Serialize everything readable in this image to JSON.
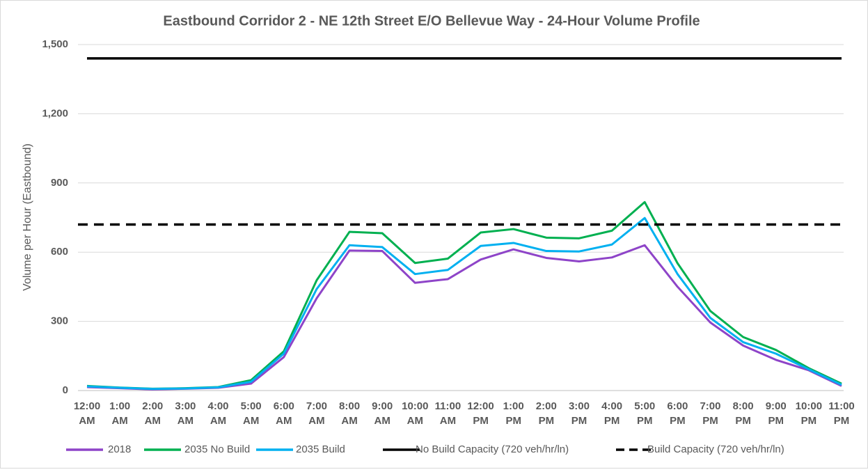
{
  "chart_data": {
    "type": "line",
    "title": "Eastbound Corridor 2 - NE 12th Street E/O Bellevue Way - 24-Hour Volume Profile",
    "y_label": "Volume per Hour (Eastbound)",
    "categories": [
      "12:00 AM",
      "1:00 AM",
      "2:00 AM",
      "3:00 AM",
      "4:00 AM",
      "5:00 AM",
      "6:00 AM",
      "7:00 AM",
      "8:00 AM",
      "9:00 AM",
      "10:00 AM",
      "11:00 AM",
      "12:00 PM",
      "1:00 PM",
      "2:00 PM",
      "3:00 PM",
      "4:00 PM",
      "5:00 PM",
      "6:00 PM",
      "7:00 PM",
      "8:00 PM",
      "9:00 PM",
      "10:00 PM",
      "11:00 PM"
    ],
    "ylim": [
      0,
      1500
    ],
    "yticks": [
      0,
      300,
      600,
      900,
      {
        "value": 1200,
        "label": "1,200"
      },
      {
        "value": 1500,
        "label": "1,500"
      }
    ],
    "grid": true,
    "legend": "bottom",
    "series": [
      {
        "name": "2018",
        "color": "#8e44c8",
        "values": [
          15,
          10,
          5,
          8,
          12,
          30,
          145,
          400,
          607,
          605,
          467,
          483,
          568,
          612,
          575,
          560,
          577,
          630,
          450,
          295,
          195,
          133,
          88,
          20
        ]
      },
      {
        "name": "2035 No Build",
        "color": "#00b050",
        "values": [
          20,
          13,
          8,
          10,
          15,
          45,
          170,
          478,
          688,
          682,
          553,
          572,
          685,
          700,
          663,
          660,
          693,
          817,
          552,
          345,
          232,
          176,
          97,
          30
        ]
      },
      {
        "name": "2035 Build",
        "color": "#00b0f0",
        "values": [
          18,
          12,
          7,
          9,
          14,
          38,
          160,
          440,
          630,
          622,
          505,
          523,
          627,
          640,
          605,
          603,
          633,
          748,
          505,
          315,
          210,
          160,
          92,
          25
        ]
      },
      {
        "name": "No Build Capacity (720 veh/hr/ln)",
        "color": "#000000",
        "values": [
          1440,
          1440,
          1440,
          1440,
          1440,
          1440,
          1440,
          1440,
          1440,
          1440,
          1440,
          1440,
          1440,
          1440,
          1440,
          1440,
          1440,
          1440,
          1440,
          1440,
          1440,
          1440,
          1440,
          1440
        ]
      },
      {
        "name": "Build Capacity (720 veh/hr/ln)",
        "color": "#000000",
        "dash": true,
        "values": [
          720,
          720,
          720,
          720,
          720,
          720,
          720,
          720,
          720,
          720,
          720,
          720,
          720,
          720,
          720,
          720,
          720,
          720,
          720,
          720,
          720,
          720,
          720,
          720
        ]
      }
    ]
  }
}
